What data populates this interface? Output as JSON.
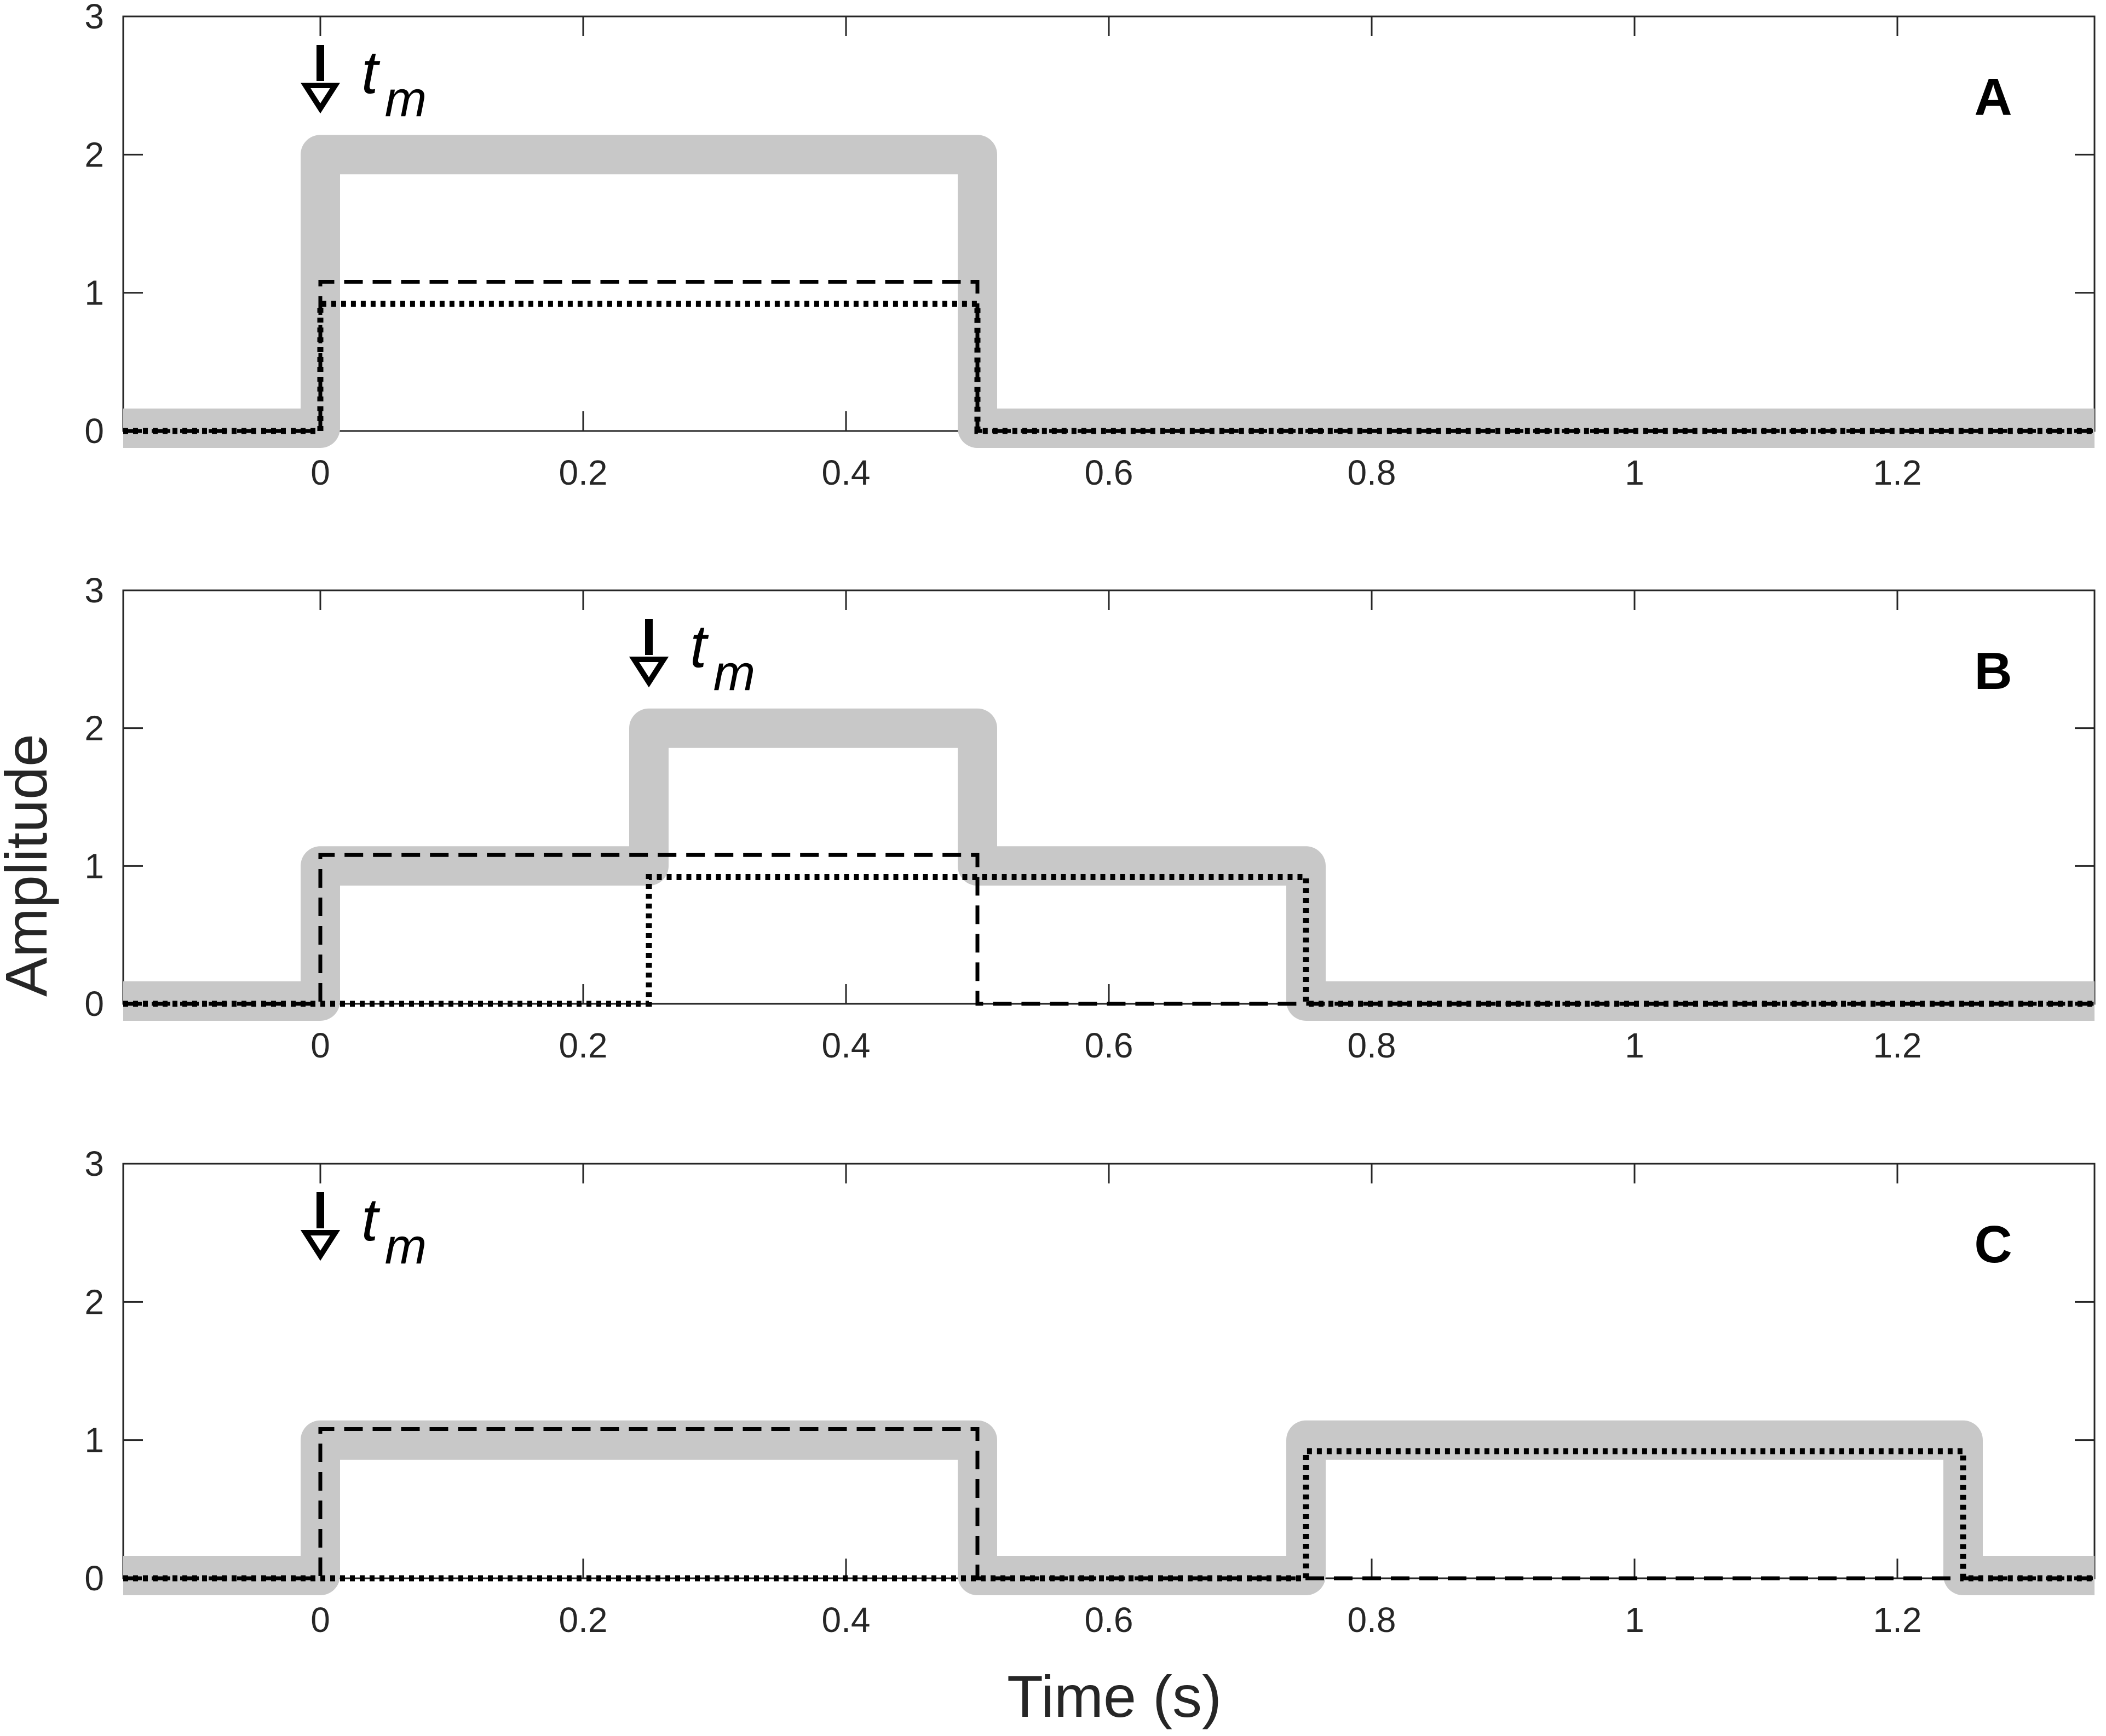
{
  "xlabel": "Time (s)",
  "ylabel": "Amplitude",
  "colors": {
    "sum_line": "#c8c8c8",
    "component_line": "#000000",
    "axes": "#262626"
  },
  "chart_data": [
    {
      "type": "line",
      "panel_label": "A",
      "xlim": [
        -0.15,
        1.35
      ],
      "ylim": [
        0,
        3
      ],
      "xticks": [
        0,
        0.2,
        0.4,
        0.6,
        0.8,
        1,
        1.2
      ],
      "xtick_labels": [
        "0",
        "0.2",
        "0.4",
        "0.6",
        "0.8",
        "1",
        "1.2"
      ],
      "yticks": [
        0,
        1,
        2,
        3
      ],
      "ytick_labels": [
        "0",
        "1",
        "2",
        "3"
      ],
      "marker": {
        "x": 0,
        "label": "t",
        "subscript": "m"
      },
      "series": [
        {
          "style": "solid-gray-thick",
          "x": [
            -0.15,
            0,
            0,
            0.5,
            0.5,
            1.35
          ],
          "y": [
            0.02,
            0.02,
            2,
            2,
            0.02,
            0.02
          ]
        },
        {
          "style": "dashed",
          "x": [
            -0.15,
            0,
            0,
            0.5,
            0.5,
            1.35
          ],
          "y": [
            0,
            0,
            1.08,
            1.08,
            0,
            0
          ]
        },
        {
          "style": "dotted",
          "x": [
            -0.15,
            0,
            0,
            0.5,
            0.5,
            1.35
          ],
          "y": [
            0,
            0,
            0.92,
            0.92,
            0,
            0
          ]
        }
      ]
    },
    {
      "type": "line",
      "panel_label": "B",
      "xlim": [
        -0.15,
        1.35
      ],
      "ylim": [
        0,
        3
      ],
      "xticks": [
        0,
        0.2,
        0.4,
        0.6,
        0.8,
        1,
        1.2
      ],
      "xtick_labels": [
        "0",
        "0.2",
        "0.4",
        "0.6",
        "0.8",
        "1",
        "1.2"
      ],
      "yticks": [
        0,
        1,
        2,
        3
      ],
      "ytick_labels": [
        "0",
        "1",
        "2",
        "3"
      ],
      "marker": {
        "x": 0.25,
        "label": "t",
        "subscript": "m"
      },
      "series": [
        {
          "style": "solid-gray-thick",
          "x": [
            -0.15,
            0,
            0,
            0.25,
            0.25,
            0.5,
            0.5,
            0.75,
            0.75,
            1.35
          ],
          "y": [
            0.02,
            0.02,
            1,
            1,
            2,
            2,
            1,
            1,
            0.02,
            0.02
          ]
        },
        {
          "style": "dashed",
          "x": [
            -0.15,
            0,
            0,
            0.5,
            0.5,
            1.35
          ],
          "y": [
            0,
            0,
            1.08,
            1.08,
            0,
            0
          ]
        },
        {
          "style": "dotted",
          "x": [
            -0.15,
            0.25,
            0.25,
            0.75,
            0.75,
            1.35
          ],
          "y": [
            0,
            0,
            0.92,
            0.92,
            0,
            0
          ]
        }
      ]
    },
    {
      "type": "line",
      "panel_label": "C",
      "xlim": [
        -0.15,
        1.35
      ],
      "ylim": [
        0,
        3
      ],
      "xticks": [
        0,
        0.2,
        0.4,
        0.6,
        0.8,
        1,
        1.2
      ],
      "xtick_labels": [
        "0",
        "0.2",
        "0.4",
        "0.6",
        "0.8",
        "1",
        "1.2"
      ],
      "yticks": [
        0,
        1,
        2,
        3
      ],
      "ytick_labels": [
        "0",
        "1",
        "2",
        "3"
      ],
      "marker": {
        "x": 0,
        "label": "t",
        "subscript": "m"
      },
      "series": [
        {
          "style": "solid-gray-thick",
          "x": [
            -0.15,
            0,
            0,
            0.5,
            0.5,
            0.75,
            0.75,
            1.25,
            1.25,
            1.35
          ],
          "y": [
            0.02,
            0.02,
            1,
            1,
            0.02,
            0.02,
            1,
            1,
            0.02,
            0.02
          ]
        },
        {
          "style": "dashed",
          "x": [
            -0.15,
            0,
            0,
            0.5,
            0.5,
            1.35
          ],
          "y": [
            0,
            0,
            1.08,
            1.08,
            0,
            0
          ]
        },
        {
          "style": "dotted",
          "x": [
            -0.15,
            0.75,
            0.75,
            1.25,
            1.25,
            1.35
          ],
          "y": [
            0,
            0,
            0.92,
            0.92,
            0,
            0
          ]
        }
      ]
    }
  ]
}
